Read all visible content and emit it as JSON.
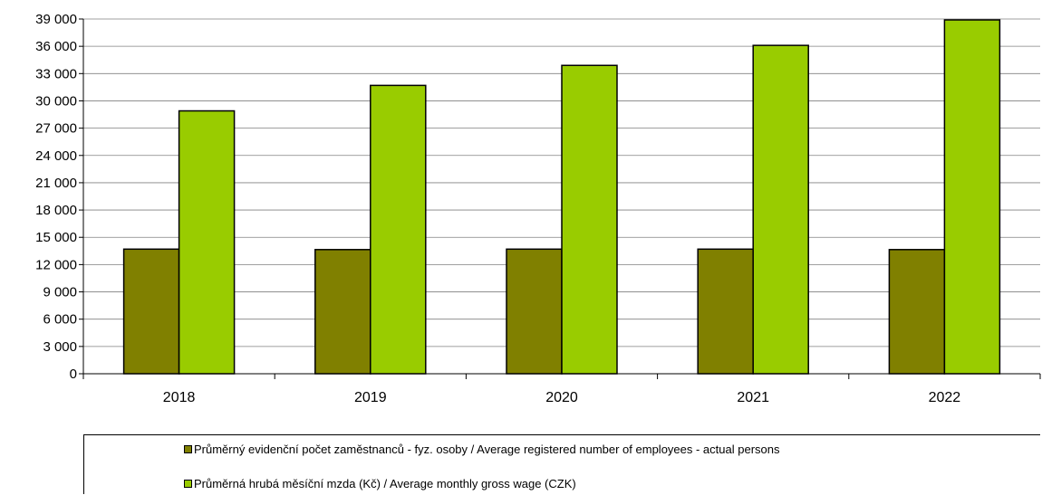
{
  "chart_data": {
    "type": "bar",
    "categories": [
      "2018",
      "2019",
      "2020",
      "2021",
      "2022"
    ],
    "series": [
      {
        "name": "Průměrný evidenční počet zaměstnanců - fyz. osoby / Average registered number of employees - actual persons",
        "color": "#808000",
        "values": [
          13700,
          13650,
          13700,
          13700,
          13650
        ]
      },
      {
        "name": "Průměrná hrubá měsíční mzda (Kč) / Average monthly gross wage (CZK)",
        "color": "#99cc00",
        "values": [
          28900,
          31700,
          33900,
          36100,
          38900
        ]
      }
    ],
    "ylim": [
      0,
      39000
    ],
    "yticks": [
      "0",
      "3 000",
      "6 000",
      "9 000",
      "12 000",
      "15 000",
      "18 000",
      "21 000",
      "24 000",
      "27 000",
      "30 000",
      "33 000",
      "36 000",
      "39 000"
    ],
    "ytick_values": [
      0,
      3000,
      6000,
      9000,
      12000,
      15000,
      18000,
      21000,
      24000,
      27000,
      30000,
      33000,
      36000,
      39000
    ],
    "grid": true,
    "legend_position": "bottom"
  }
}
